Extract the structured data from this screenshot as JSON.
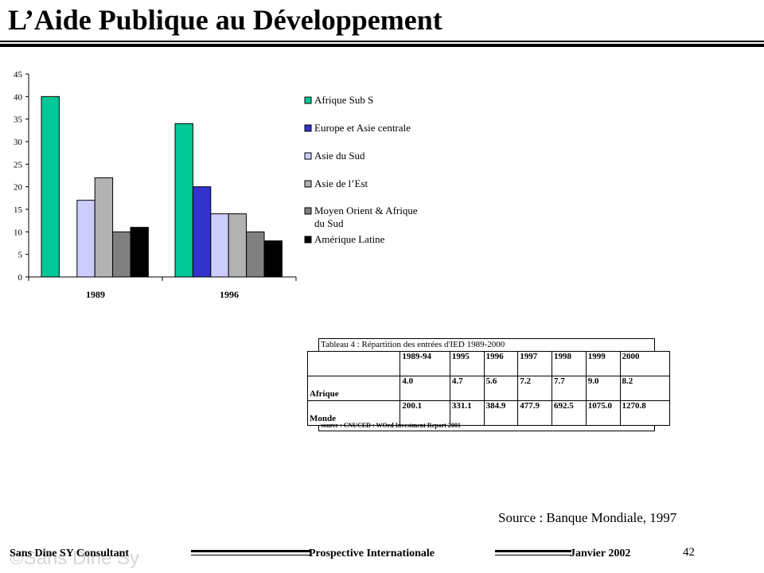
{
  "slide": {
    "title": "L’Aide Publique au Développement",
    "source": "Source : Banque Mondiale,  1997"
  },
  "chart_data": {
    "type": "bar",
    "categories": [
      "1989",
      "1996"
    ],
    "series": [
      {
        "name": "Afrique Sub S",
        "values": [
          40,
          34
        ],
        "color": "#00c896"
      },
      {
        "name": "Europe et Asie centrale",
        "values": [
          null,
          20
        ],
        "color": "#3333cc"
      },
      {
        "name": "Asie du Sud",
        "values": [
          17,
          14
        ],
        "color": "#ccccff"
      },
      {
        "name": "Asie de l’Est",
        "values": [
          22,
          14
        ],
        "color": "#b2b2b2"
      },
      {
        "name": "Moyen Orient & Afrique du Sud",
        "values": [
          10,
          10
        ],
        "color": "#808080"
      },
      {
        "name": "Amérique Latine",
        "values": [
          11,
          8
        ],
        "color": "#000000"
      }
    ],
    "ylim": [
      0,
      45
    ],
    "yticks": [
      0,
      5,
      10,
      15,
      20,
      25,
      30,
      35,
      40,
      45
    ],
    "legend_position": "right",
    "grid": false
  },
  "ied_table": {
    "caption": "Tableau 4 : Répartition des entrées d'IED 1989-2000",
    "columns": [
      "1989-94",
      "1995",
      "1996",
      "1997",
      "1998",
      "1999",
      "2000"
    ],
    "rows": [
      {
        "label": "Afrique",
        "values": [
          "4.0",
          "4.7",
          "5.6",
          "7.2",
          "7.7",
          "9.0",
          "8.2"
        ]
      },
      {
        "label": "Monde",
        "values": [
          "200.1",
          "331.1",
          "384.9",
          "477.9",
          "692.5",
          "1075.0",
          "1270.8"
        ]
      }
    ],
    "source": "source : CNUCED : WOrd Investment Report 2001"
  },
  "footer": {
    "author": "Sans Dine SY Consultant",
    "watermark": "©Sans Dine Sy",
    "center": "Prospective Internationale",
    "date": "Janvier 2002",
    "page": "42"
  }
}
